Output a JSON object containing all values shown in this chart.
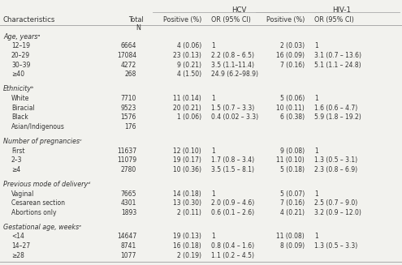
{
  "rows": [
    {
      "label": "Age, yearsᵃ",
      "indent": 0,
      "total": "",
      "hcv_pos": "",
      "hcv_or": "",
      "hiv_pos": "",
      "hiv_or": "",
      "spacer_before": true
    },
    {
      "label": "12–19",
      "indent": 1,
      "total": "6664",
      "hcv_pos": "4 (0.06)",
      "hcv_or": "1",
      "hiv_pos": "2 (0.03)",
      "hiv_or": "1",
      "spacer_before": false
    },
    {
      "label": "20–29",
      "indent": 1,
      "total": "17084",
      "hcv_pos": "23 (0.13)",
      "hcv_or": "2.2 (0.8 – 6.5)",
      "hiv_pos": "16 (0.09)",
      "hiv_or": "3.1 (0.7 – 13.6)",
      "spacer_before": false
    },
    {
      "label": "30–39",
      "indent": 1,
      "total": "4272",
      "hcv_pos": "9 (0.21)",
      "hcv_or": "3.5 (1.1–11.4)",
      "hiv_pos": "7 (0.16)",
      "hiv_or": "5.1 (1.1 – 24.8)",
      "spacer_before": false
    },
    {
      "label": "≥40",
      "indent": 1,
      "total": "268",
      "hcv_pos": "4 (1.50)",
      "hcv_or": "24.9 (6.2–98.9)",
      "hiv_pos": "",
      "hiv_or": "",
      "spacer_before": false
    },
    {
      "label": "Ethnicityᵇ",
      "indent": 0,
      "total": "",
      "hcv_pos": "",
      "hcv_or": "",
      "hiv_pos": "",
      "hiv_or": "",
      "spacer_before": true
    },
    {
      "label": "White",
      "indent": 1,
      "total": "7710",
      "hcv_pos": "11 (0.14)",
      "hcv_or": "1",
      "hiv_pos": "5 (0.06)",
      "hiv_or": "1",
      "spacer_before": false
    },
    {
      "label": "Biracial",
      "indent": 1,
      "total": "9523",
      "hcv_pos": "20 (0.21)",
      "hcv_or": "1.5 (0.7 – 3.3)",
      "hiv_pos": "10 (0.11)",
      "hiv_or": "1.6 (0.6 – 4.7)",
      "spacer_before": false
    },
    {
      "label": "Black",
      "indent": 1,
      "total": "1576",
      "hcv_pos": "1 (0.06)",
      "hcv_or": "0.4 (0.02 – 3.3)",
      "hiv_pos": "6 (0.38)",
      "hiv_or": "5.9 (1.8 – 19.2)",
      "spacer_before": false
    },
    {
      "label": "Asian/Indigenous",
      "indent": 1,
      "total": "176",
      "hcv_pos": "",
      "hcv_or": "",
      "hiv_pos": "",
      "hiv_or": "",
      "spacer_before": false
    },
    {
      "label": "Number of pregnanciesᶜ",
      "indent": 0,
      "total": "",
      "hcv_pos": "",
      "hcv_or": "",
      "hiv_pos": "",
      "hiv_or": "",
      "spacer_before": true
    },
    {
      "label": "First",
      "indent": 1,
      "total": "11637",
      "hcv_pos": "12 (0.10)",
      "hcv_or": "1",
      "hiv_pos": "9 (0.08)",
      "hiv_or": "1",
      "spacer_before": false
    },
    {
      "label": "2–3",
      "indent": 1,
      "total": "11079",
      "hcv_pos": "19 (0.17)",
      "hcv_or": "1.7 (0.8 – 3.4)",
      "hiv_pos": "11 (0.10)",
      "hiv_or": "1.3 (0.5 – 3.1)",
      "spacer_before": false
    },
    {
      "label": "≥4",
      "indent": 1,
      "total": "2780",
      "hcv_pos": "10 (0.36)",
      "hcv_or": "3.5 (1.5 – 8.1)",
      "hiv_pos": "5 (0.18)",
      "hiv_or": "2.3 (0.8 – 6.9)",
      "spacer_before": false
    },
    {
      "label": "Previous mode of deliveryᵈ",
      "indent": 0,
      "total": "",
      "hcv_pos": "",
      "hcv_or": "",
      "hiv_pos": "",
      "hiv_or": "",
      "spacer_before": true
    },
    {
      "label": "Vaginal",
      "indent": 1,
      "total": "7665",
      "hcv_pos": "14 (0.18)",
      "hcv_or": "1",
      "hiv_pos": "5 (0.07)",
      "hiv_or": "1",
      "spacer_before": false
    },
    {
      "label": "Cesarean section",
      "indent": 1,
      "total": "4301",
      "hcv_pos": "13 (0.30)",
      "hcv_or": "2.0 (0.9 – 4.6)",
      "hiv_pos": "7 (0.16)",
      "hiv_or": "2.5 (0.7 – 9.0)",
      "spacer_before": false
    },
    {
      "label": "Abortions only",
      "indent": 1,
      "total": "1893",
      "hcv_pos": "2 (0.11)",
      "hcv_or": "0.6 (0.1 – 2.6)",
      "hiv_pos": "4 (0.21)",
      "hiv_or": "3.2 (0.9 – 12.0)",
      "spacer_before": false
    },
    {
      "label": "Gestational age, weeksᵉ",
      "indent": 0,
      "total": "",
      "hcv_pos": "",
      "hcv_or": "",
      "hiv_pos": "",
      "hiv_or": "",
      "spacer_before": true
    },
    {
      "label": "<14",
      "indent": 1,
      "total": "14647",
      "hcv_pos": "19 (0.13)",
      "hcv_or": "1",
      "hiv_pos": "11 (0.08)",
      "hiv_or": "1",
      "spacer_before": false
    },
    {
      "label": "14–27",
      "indent": 1,
      "total": "8741",
      "hcv_pos": "16 (0.18)",
      "hcv_or": "0.8 (0.4 – 1.6)",
      "hiv_pos": "8 (0.09)",
      "hiv_or": "1.3 (0.5 – 3.3)",
      "spacer_before": false
    },
    {
      "label": "≥28",
      "indent": 1,
      "total": "1077",
      "hcv_pos": "2 (0.19)",
      "hcv_or": "1.1 (0.2 – 4.5)",
      "hiv_pos": "",
      "hiv_or": "",
      "spacer_before": false
    }
  ],
  "bg_color": "#f2f2ee",
  "text_color": "#333333",
  "line_color": "#aaaaaa",
  "fs": 5.8,
  "fs_hdr": 6.2
}
